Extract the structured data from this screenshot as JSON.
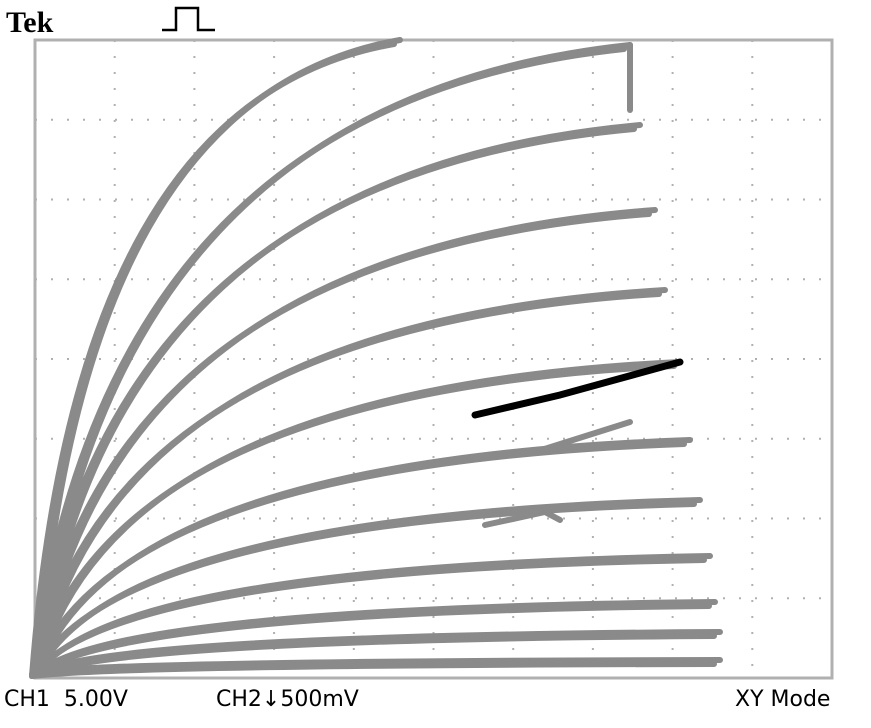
{
  "header": {
    "brand": "Tek"
  },
  "footer": {
    "ch1": "CH1  5.00V",
    "ch2": "CH2↓500mV",
    "mode": "XY Mode"
  }
}
